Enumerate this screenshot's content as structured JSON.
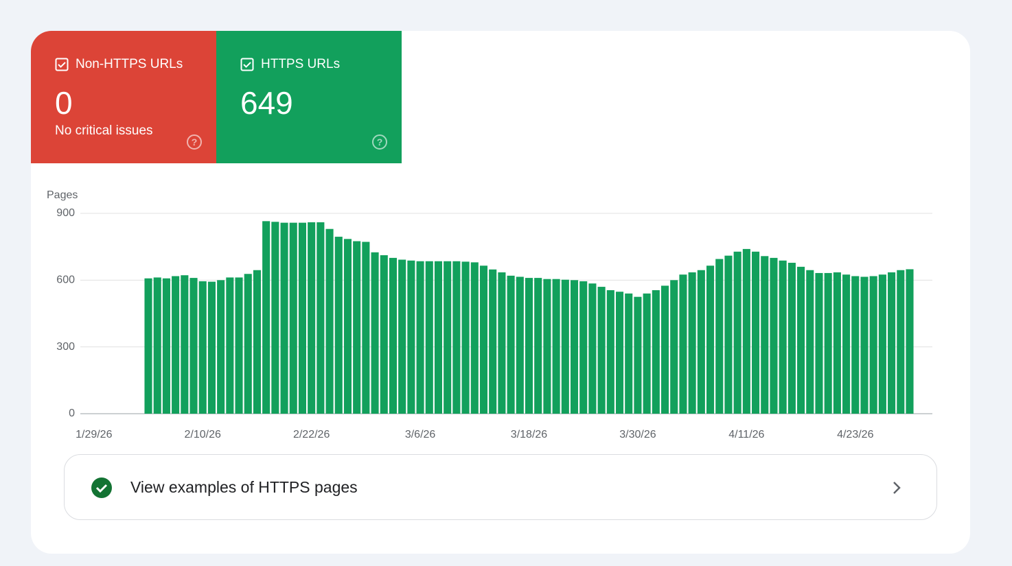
{
  "cards": [
    {
      "label": "Non-HTTPS URLs",
      "value": "0",
      "note": "No critical issues"
    },
    {
      "label": "HTTPS URLs",
      "value": "649"
    }
  ],
  "chart_data": {
    "type": "bar",
    "y_label": "Pages",
    "color": "#12a05c",
    "ylim": [
      0,
      900
    ],
    "yticks": [
      0,
      300,
      600,
      900
    ],
    "grid": true,
    "categories": [
      null,
      "1/29/26",
      null,
      null,
      null,
      null,
      null,
      null,
      null,
      null,
      null,
      null,
      null,
      "2/10/26",
      null,
      null,
      null,
      null,
      null,
      null,
      null,
      null,
      null,
      null,
      null,
      "2/22/26",
      null,
      null,
      null,
      null,
      null,
      null,
      null,
      null,
      null,
      null,
      null,
      "3/6/26",
      null,
      null,
      null,
      null,
      null,
      null,
      null,
      null,
      null,
      null,
      null,
      "3/18/26",
      null,
      null,
      null,
      null,
      null,
      null,
      null,
      null,
      null,
      null,
      null,
      "3/30/26",
      null,
      null,
      null,
      null,
      null,
      null,
      null,
      null,
      null,
      null,
      null,
      "4/11/26",
      null,
      null,
      null,
      null,
      null,
      null,
      null,
      null,
      null,
      null,
      null,
      "4/23/26",
      null,
      null,
      null,
      null,
      null,
      null,
      null,
      null
    ],
    "values": [
      null,
      null,
      null,
      null,
      null,
      null,
      null,
      608,
      612,
      608,
      618,
      622,
      610,
      595,
      593,
      600,
      612,
      612,
      628,
      645,
      865,
      862,
      858,
      858,
      858,
      860,
      860,
      830,
      795,
      785,
      775,
      772,
      725,
      712,
      700,
      692,
      688,
      685,
      685,
      685,
      685,
      685,
      683,
      680,
      665,
      648,
      635,
      620,
      615,
      610,
      610,
      605,
      605,
      602,
      600,
      595,
      585,
      570,
      555,
      548,
      540,
      525,
      540,
      555,
      575,
      600,
      625,
      635,
      645,
      665,
      695,
      710,
      728,
      740,
      728,
      708,
      700,
      688,
      678,
      660,
      645,
      632,
      632,
      635,
      625,
      618,
      615,
      618,
      625,
      635,
      645,
      649,
      null,
      null
    ]
  },
  "link": {
    "text": "View examples of HTTPS pages"
  }
}
